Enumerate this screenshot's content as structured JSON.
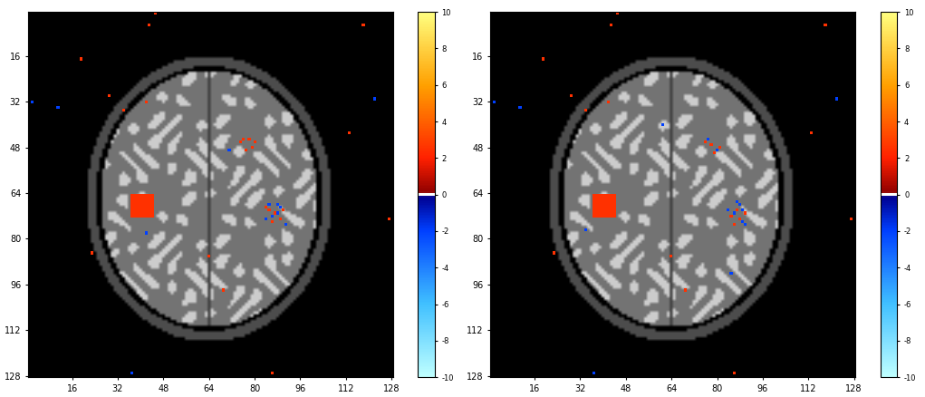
{
  "chart_data": [
    {
      "type": "heatmap",
      "xlim": [
        0.5,
        128.5
      ],
      "ylim": [
        128.5,
        0.5
      ],
      "xticks": [
        16,
        32,
        48,
        64,
        80,
        96,
        112,
        128
      ],
      "yticks": [
        16,
        32,
        48,
        64,
        80,
        96,
        112,
        128
      ],
      "colorbar_range": [
        -10,
        10
      ],
      "colorbar_ticks": [
        -10,
        -8,
        -6,
        -4,
        -2,
        0,
        2,
        4,
        6,
        8,
        10
      ],
      "blocks": [
        {
          "x": [
            37,
            44
          ],
          "y": [
            65,
            72
          ],
          "value": 2.5
        }
      ],
      "cells": [
        [
          45,
          1,
          2.5
        ],
        [
          43,
          5,
          2.5
        ],
        [
          19,
          17,
          2.5
        ],
        [
          29,
          30,
          2.5
        ],
        [
          34,
          35,
          2.5
        ],
        [
          42,
          32,
          2.5
        ],
        [
          118,
          5,
          2.5
        ],
        [
          113,
          43,
          2.5
        ],
        [
          127,
          73,
          2.5
        ],
        [
          23,
          85,
          2.5
        ],
        [
          64,
          86,
          2.5
        ],
        [
          69,
          98,
          2.5
        ],
        [
          86,
          127,
          2.5
        ],
        [
          2,
          32,
          -2
        ],
        [
          11,
          34,
          -2
        ],
        [
          122,
          31,
          -2
        ],
        [
          42,
          78,
          -2
        ],
        [
          37,
          127,
          -2
        ],
        [
          71,
          49,
          -2
        ],
        [
          76,
          45,
          2.5
        ],
        [
          78,
          45,
          2.5
        ],
        [
          80,
          46,
          2.5
        ],
        [
          79,
          48,
          2.5
        ],
        [
          77,
          49,
          2.5
        ],
        [
          75,
          46,
          2.5
        ],
        [
          84,
          69,
          2.5
        ],
        [
          85,
          70,
          2.5
        ],
        [
          87,
          71,
          2.5
        ],
        [
          89,
          73,
          2.5
        ],
        [
          86,
          74,
          2.5
        ],
        [
          90,
          70,
          2.5
        ],
        [
          88,
          68,
          -2
        ],
        [
          89,
          69,
          -2
        ],
        [
          86,
          72,
          -2
        ],
        [
          91,
          75,
          -2
        ],
        [
          84,
          73,
          -2
        ],
        [
          88,
          71,
          -2
        ],
        [
          85,
          68,
          -2
        ]
      ]
    },
    {
      "type": "heatmap",
      "xlim": [
        0.5,
        128.5
      ],
      "ylim": [
        128.5,
        0.5
      ],
      "xticks": [
        16,
        32,
        48,
        64,
        80,
        96,
        112,
        128
      ],
      "yticks": [
        16,
        32,
        48,
        64,
        80,
        96,
        112,
        128
      ],
      "colorbar_range": [
        -10,
        10
      ],
      "colorbar_ticks": [
        -10,
        -8,
        -6,
        -4,
        -2,
        0,
        2,
        4,
        6,
        8,
        10
      ],
      "blocks": [
        {
          "x": [
            37,
            44
          ],
          "y": [
            65,
            72
          ],
          "value": 2.5
        }
      ],
      "cells": [
        [
          45,
          1,
          2.5
        ],
        [
          43,
          5,
          2.5
        ],
        [
          19,
          17,
          2.5
        ],
        [
          29,
          30,
          2.5
        ],
        [
          34,
          35,
          2.5
        ],
        [
          42,
          32,
          2.5
        ],
        [
          118,
          5,
          2.5
        ],
        [
          113,
          43,
          2.5
        ],
        [
          127,
          73,
          2.5
        ],
        [
          23,
          85,
          2.5
        ],
        [
          64,
          86,
          2.5
        ],
        [
          69,
          98,
          2.5
        ],
        [
          86,
          127,
          2.5
        ],
        [
          2,
          32,
          -2
        ],
        [
          11,
          34,
          -2
        ],
        [
          122,
          31,
          -2
        ],
        [
          34,
          77,
          -2
        ],
        [
          37,
          127,
          -2
        ],
        [
          85,
          92,
          -2
        ],
        [
          61,
          40,
          -2
        ],
        [
          78,
          47,
          2.5
        ],
        [
          81,
          48,
          2.5
        ],
        [
          79,
          50,
          2.5
        ],
        [
          76,
          46,
          2.5
        ],
        [
          77,
          45,
          -2
        ],
        [
          80,
          49,
          -2
        ],
        [
          85,
          72,
          2.5
        ],
        [
          88,
          73,
          2.5
        ],
        [
          87,
          70,
          2.5
        ],
        [
          90,
          71,
          2.5
        ],
        [
          86,
          75,
          2.5
        ],
        [
          87,
          67,
          -2
        ],
        [
          88,
          68,
          -2
        ],
        [
          86,
          71,
          -2
        ],
        [
          89,
          74,
          -2
        ],
        [
          90,
          75,
          -2
        ],
        [
          84,
          70,
          -2
        ],
        [
          89,
          70,
          -2
        ]
      ]
    }
  ]
}
